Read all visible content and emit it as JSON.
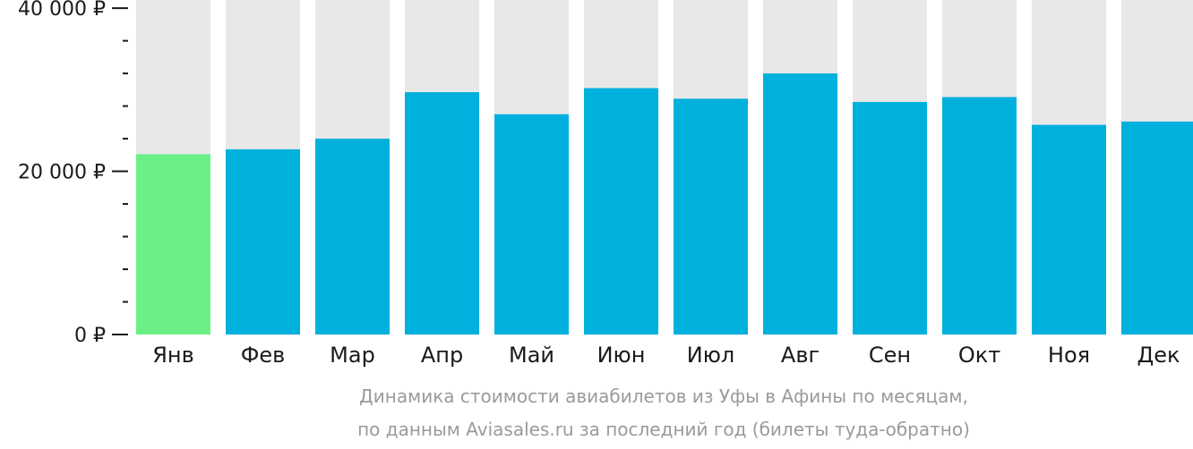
{
  "chart_data": {
    "type": "bar",
    "categories": [
      "Янв",
      "Фев",
      "Мар",
      "Апр",
      "Май",
      "Июн",
      "Июл",
      "Авг",
      "Сен",
      "Окт",
      "Ноя",
      "Дек"
    ],
    "values": [
      22100,
      22700,
      24000,
      29700,
      27000,
      30200,
      28900,
      32000,
      28500,
      29100,
      25700,
      26100
    ],
    "ylim": [
      0,
      41000
    ],
    "yticks": [
      {
        "value": 0,
        "label": "0 ₽"
      },
      {
        "value": 20000,
        "label": "20 000 ₽"
      },
      {
        "value": 40000,
        "label": "40 000 ₽"
      }
    ],
    "minor_ticks": [
      4000,
      8000,
      12000,
      16000,
      24000,
      28000,
      32000,
      36000
    ],
    "highlight_index": 0,
    "colors": {
      "bar": "#00b0dd",
      "highlight": "#6bf088",
      "background_bar": "#e8e8e8",
      "axis": "#1a1a1a"
    },
    "caption_line1": "Динамика стоимости авиабилетов из Уфы в Афины по месяцам,",
    "caption_line2": "по данным Aviasales.ru за последний год (билеты туда-обратно)"
  }
}
